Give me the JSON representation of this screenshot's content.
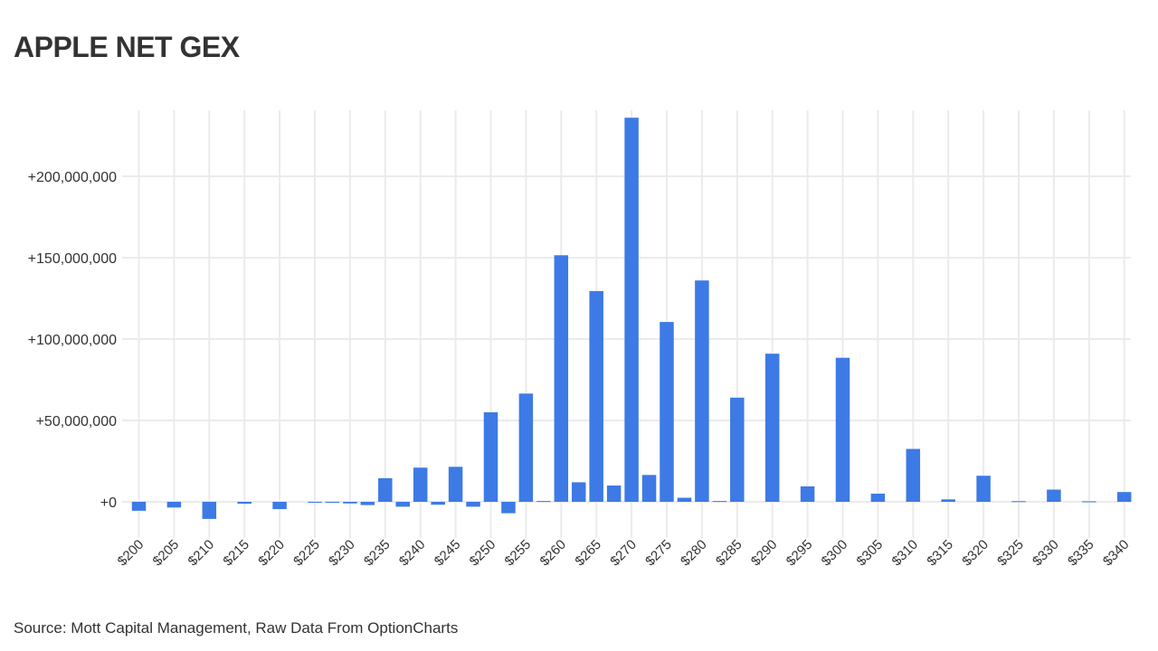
{
  "title": "APPLE NET GEX",
  "source": "Source: Mott Capital Management, Raw Data From OptionCharts",
  "colors": {
    "bar": "#3d7ae5",
    "grid": "#ebebeb",
    "text": "#333333"
  },
  "chart_data": {
    "type": "bar",
    "title": "APPLE NET GEX",
    "xlabel": "",
    "ylabel": "",
    "ylim": [
      -25000000,
      240000000
    ],
    "grid": true,
    "y_ticks": [
      0,
      50000000,
      100000000,
      150000000,
      200000000
    ],
    "y_tick_labels": [
      "+0",
      "+50,000,000",
      "+100,000,000",
      "+150,000,000",
      "+200,000,000"
    ],
    "categories": [
      "$200",
      "$202.5",
      "$205",
      "$207.5",
      "$210",
      "$212.5",
      "$215",
      "$217.5",
      "$220",
      "$222.5",
      "$225",
      "$227.5",
      "$230",
      "$232.5",
      "$235",
      "$237.5",
      "$240",
      "$242.5",
      "$245",
      "$247.5",
      "$250",
      "$252.5",
      "$255",
      "$257.5",
      "$260",
      "$262.5",
      "$265",
      "$267.5",
      "$270",
      "$272.5",
      "$275",
      "$277.5",
      "$280",
      "$282.5",
      "$285",
      "$287.5",
      "$290",
      "$292.5",
      "$295",
      "$297.5",
      "$300",
      "$302.5",
      "$305",
      "$307.5",
      "$310",
      "$312.5",
      "$315",
      "$317.5",
      "$320",
      "$322.5",
      "$325",
      "$327.5",
      "$330",
      "$332.5",
      "$335",
      "$337.5",
      "$340"
    ],
    "x_tick_labels": [
      "$200",
      "$205",
      "$210",
      "$215",
      "$220",
      "$225",
      "$230",
      "$235",
      "$240",
      "$245",
      "$250",
      "$255",
      "$260",
      "$265",
      "$270",
      "$275",
      "$280",
      "$285",
      "$290",
      "$295",
      "$300",
      "$305",
      "$310",
      "$315",
      "$320",
      "$325",
      "$330",
      "$335",
      "$340"
    ],
    "values": [
      -5500000,
      0,
      -3500000,
      0,
      -10500000,
      0,
      -1200000,
      0,
      -4500000,
      0,
      -400000,
      -600000,
      -1000000,
      -2000000,
      14500000,
      -3000000,
      21000000,
      -1800000,
      21500000,
      -3000000,
      55000000,
      -7000000,
      66500000,
      500000,
      151500000,
      12000000,
      129500000,
      10000000,
      236000000,
      16500000,
      110500000,
      2500000,
      136000000,
      500000,
      64000000,
      0,
      91000000,
      0,
      9500000,
      0,
      88500000,
      0,
      5000000,
      0,
      32500000,
      0,
      1500000,
      0,
      16000000,
      0,
      400000,
      0,
      7500000,
      0,
      300000,
      0,
      6000000
    ]
  }
}
